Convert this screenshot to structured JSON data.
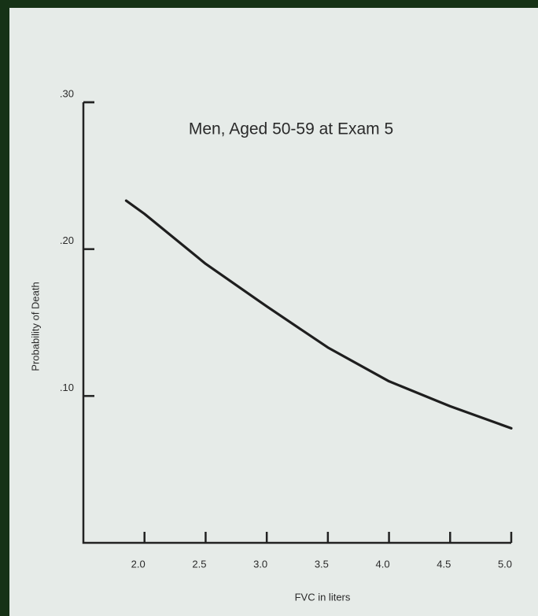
{
  "chart_data": {
    "type": "line",
    "title": "Men, Aged 50-59 at Exam 5",
    "x_label": "FVC in liters",
    "y_label": "Probability of Death",
    "x": [
      1.85,
      2.0,
      2.5,
      3.0,
      3.5,
      4.0,
      4.5,
      5.0
    ],
    "series": [
      {
        "name": "Men, Aged 50-59 at Exam 5",
        "color": "#1e1e1e",
        "values": [
          0.233,
          0.224,
          0.19,
          0.161,
          0.133,
          0.11,
          0.093,
          0.078
        ]
      }
    ],
    "xlim": [
      1.5,
      5.0
    ],
    "xticks": [
      {
        "value": 2.0,
        "label": "2.0"
      },
      {
        "value": 2.5,
        "label": "2.5"
      },
      {
        "value": 3.0,
        "label": "3.0"
      },
      {
        "value": 3.5,
        "label": "3.5"
      },
      {
        "value": 4.0,
        "label": "4.0"
      },
      {
        "value": 4.5,
        "label": "4.5"
      },
      {
        "value": 5.0,
        "label": "5.0"
      }
    ],
    "ylim": [
      0,
      0.3
    ],
    "yticks": [
      {
        "value": 0.1,
        "label": ".10"
      },
      {
        "value": 0.2,
        "label": ".20"
      },
      {
        "value": 0.3,
        "label": ".30"
      }
    ],
    "grid": false
  }
}
